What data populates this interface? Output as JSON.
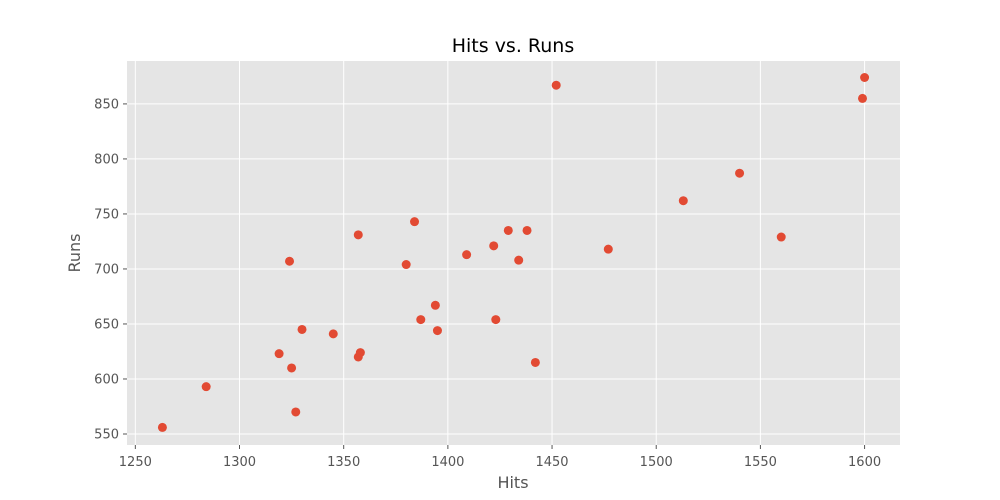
{
  "chart_data": {
    "type": "scatter",
    "title": "Hits vs. Runs",
    "xlabel": "Hits",
    "ylabel": "Runs",
    "xlim": [
      1246,
      1617
    ],
    "ylim": [
      540,
      889
    ],
    "xticks": [
      1250,
      1300,
      1350,
      1400,
      1450,
      1500,
      1550,
      1600
    ],
    "yticks": [
      550,
      600,
      650,
      700,
      750,
      800,
      850
    ],
    "grid": true,
    "point_color": "#E24A33",
    "background_color": "#E5E5E5",
    "grid_color": "#FFFFFF",
    "points": [
      {
        "x": 1263,
        "y": 556
      },
      {
        "x": 1284,
        "y": 593
      },
      {
        "x": 1319,
        "y": 623
      },
      {
        "x": 1324,
        "y": 707
      },
      {
        "x": 1325,
        "y": 610
      },
      {
        "x": 1327,
        "y": 570
      },
      {
        "x": 1330,
        "y": 645
      },
      {
        "x": 1345,
        "y": 641
      },
      {
        "x": 1357,
        "y": 731
      },
      {
        "x": 1357,
        "y": 620
      },
      {
        "x": 1358,
        "y": 624
      },
      {
        "x": 1380,
        "y": 704
      },
      {
        "x": 1384,
        "y": 743
      },
      {
        "x": 1387,
        "y": 654
      },
      {
        "x": 1394,
        "y": 667
      },
      {
        "x": 1395,
        "y": 644
      },
      {
        "x": 1409,
        "y": 713
      },
      {
        "x": 1422,
        "y": 721
      },
      {
        "x": 1423,
        "y": 654
      },
      {
        "x": 1429,
        "y": 735
      },
      {
        "x": 1434,
        "y": 708
      },
      {
        "x": 1438,
        "y": 735
      },
      {
        "x": 1442,
        "y": 615
      },
      {
        "x": 1452,
        "y": 867
      },
      {
        "x": 1477,
        "y": 718
      },
      {
        "x": 1513,
        "y": 762
      },
      {
        "x": 1540,
        "y": 787
      },
      {
        "x": 1560,
        "y": 729
      },
      {
        "x": 1599,
        "y": 855
      },
      {
        "x": 1600,
        "y": 874
      }
    ]
  }
}
